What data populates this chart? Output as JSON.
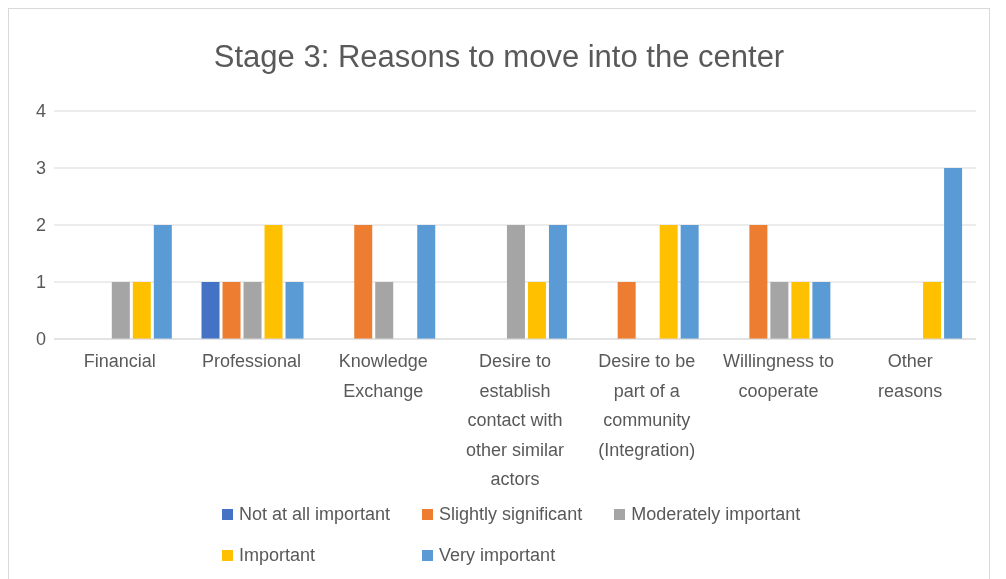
{
  "chart_data": {
    "type": "bar",
    "title": "Stage 3: Reasons to move into the center",
    "categories": [
      "Financial",
      "Professional",
      "Knowledge Exchange",
      "Desire to establish contact with other similar actors",
      "Desire to be part of a community (Integration)",
      "Willingness to cooperate",
      "Other reasons"
    ],
    "series": [
      {
        "name": "Not at all important",
        "color": "#4472c4",
        "values": [
          0,
          1,
          0,
          0,
          0,
          0,
          0
        ]
      },
      {
        "name": "Slightly significant",
        "color": "#ed7d31",
        "values": [
          0,
          1,
          2,
          0,
          1,
          2,
          0
        ]
      },
      {
        "name": "Moderately important",
        "color": "#a5a5a5",
        "values": [
          1,
          1,
          1,
          2,
          0,
          1,
          0
        ]
      },
      {
        "name": "Important",
        "color": "#ffc000",
        "values": [
          1,
          2,
          0,
          1,
          2,
          1,
          1
        ]
      },
      {
        "name": "Very important",
        "color": "#5b9bd5",
        "values": [
          2,
          1,
          2,
          2,
          2,
          1,
          3
        ]
      }
    ],
    "ylim": [
      0,
      4
    ],
    "yticks": [
      0,
      1,
      2,
      3,
      4
    ],
    "grid": "y",
    "legend": "bottom"
  }
}
